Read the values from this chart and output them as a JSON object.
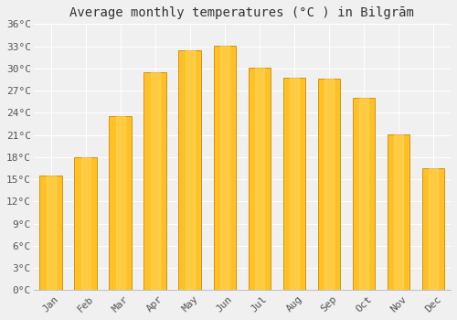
{
  "title": "Average monthly temperatures (°C ) in Bilgrām",
  "months": [
    "Jan",
    "Feb",
    "Mar",
    "Apr",
    "May",
    "Jun",
    "Jul",
    "Aug",
    "Sep",
    "Oct",
    "Nov",
    "Dec"
  ],
  "values": [
    15.5,
    18.0,
    23.5,
    29.5,
    32.5,
    33.1,
    30.1,
    28.7,
    28.6,
    26.0,
    21.1,
    16.5
  ],
  "bar_color": "#FFC125",
  "bar_edge_color": "#CC8800",
  "ylim": [
    0,
    36
  ],
  "ytick_step": 3,
  "background_color": "#f0f0f0",
  "grid_color": "#ffffff",
  "title_fontsize": 10,
  "tick_fontsize": 8,
  "font_family": "monospace"
}
